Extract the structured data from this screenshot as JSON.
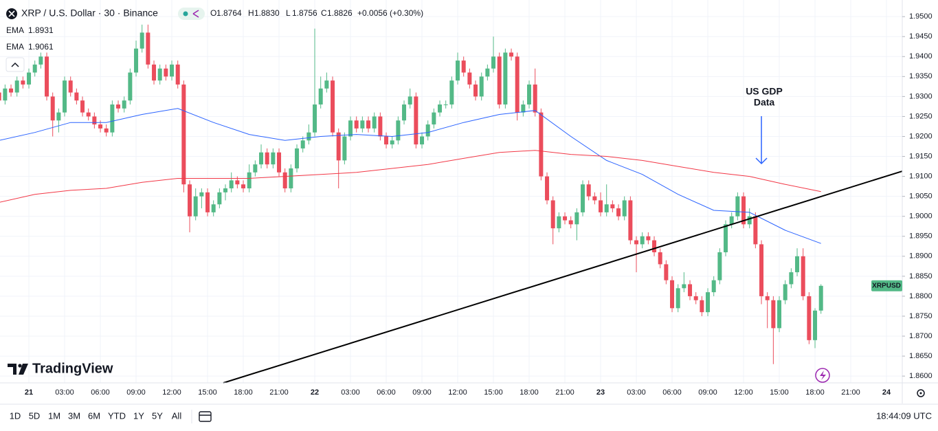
{
  "header": {
    "symbol": "XRP / U.S. Dollar · 30 · Binance",
    "ohlc": [
      {
        "label": "O",
        "value": "1.8764"
      },
      {
        "label": "H",
        "value": "1.8830"
      },
      {
        "label": "L",
        "value": "1.8756"
      },
      {
        "label": "C",
        "value": "1.8826"
      }
    ],
    "change": "+0.0056 (+0.30%)"
  },
  "logo": "TradingView",
  "toolbar": {
    "ranges": [
      "1D",
      "5D",
      "1M",
      "3M",
      "6M",
      "YTD",
      "1Y",
      "5Y",
      "All"
    ],
    "clock": "18:44:09 UTC"
  },
  "chart_data": {
    "type": "candlestick",
    "up_color": "#53b987",
    "down_color": "#eb4d5c",
    "grid": true,
    "xlim": [
      0.15,
      151.65
    ],
    "ylim": [
      1.8583,
      1.9533
    ],
    "yticks": [
      {
        "value": 1.86,
        "label": "1.8600"
      },
      {
        "value": 1.865,
        "label": "1.8650"
      },
      {
        "value": 1.87,
        "label": "1.8700"
      },
      {
        "value": 1.875,
        "label": "1.8750"
      },
      {
        "value": 1.88,
        "label": "1.8800"
      },
      {
        "value": 1.885,
        "label": "1.8850"
      },
      {
        "value": 1.89,
        "label": "1.8900"
      },
      {
        "value": 1.895,
        "label": "1.8950"
      },
      {
        "value": 1.9,
        "label": "1.9000"
      },
      {
        "value": 1.905,
        "label": "1.9050"
      },
      {
        "value": 1.91,
        "label": "1.9100"
      },
      {
        "value": 1.915,
        "label": "1.9150"
      },
      {
        "value": 1.92,
        "label": "1.9200"
      },
      {
        "value": 1.925,
        "label": "1.9250"
      },
      {
        "value": 1.93,
        "label": "1.9300"
      },
      {
        "value": 1.935,
        "label": "1.9350"
      },
      {
        "value": 1.94,
        "label": "1.9400"
      },
      {
        "value": 1.945,
        "label": "1.9450"
      },
      {
        "value": 1.95,
        "label": "1.9500"
      }
    ],
    "xticks": [
      {
        "value": 5,
        "label": "21"
      },
      {
        "value": 11,
        "label": "03:00"
      },
      {
        "value": 17,
        "label": "06:00"
      },
      {
        "value": 23,
        "label": "09:00"
      },
      {
        "value": 29,
        "label": "12:00"
      },
      {
        "value": 35,
        "label": "15:00"
      },
      {
        "value": 41,
        "label": "18:00"
      },
      {
        "value": 47,
        "label": "21:00"
      },
      {
        "value": 53,
        "label": "22"
      },
      {
        "value": 59,
        "label": "03:00"
      },
      {
        "value": 65,
        "label": "06:00"
      },
      {
        "value": 71,
        "label": "09:00"
      },
      {
        "value": 77,
        "label": "12:00"
      },
      {
        "value": 83,
        "label": "15:00"
      },
      {
        "value": 89,
        "label": "18:00"
      },
      {
        "value": 95,
        "label": "21:00"
      },
      {
        "value": 101,
        "label": "23"
      },
      {
        "value": 107,
        "label": "03:00"
      },
      {
        "value": 113,
        "label": "06:00"
      },
      {
        "value": 119,
        "label": "09:00"
      },
      {
        "value": 125,
        "label": "12:00"
      },
      {
        "value": 131,
        "label": "15:00"
      },
      {
        "value": 137,
        "label": "18:00"
      },
      {
        "value": 143,
        "label": "21:00"
      },
      {
        "value": 149,
        "label": "24"
      }
    ],
    "open": [
      1.931,
      1.929,
      1.932,
      1.931,
      1.934,
      1.933,
      1.936,
      1.938,
      1.94,
      1.93,
      1.924,
      1.926,
      1.934,
      1.931,
      1.929,
      1.926,
      1.925,
      1.923,
      1.922,
      1.921,
      1.928,
      1.927,
      1.929,
      1.936,
      1.942,
      1.946,
      1.938,
      1.934,
      1.937,
      1.935,
      1.938,
      1.933,
      1.908,
      1.9,
      1.905,
      1.906,
      1.901,
      1.903,
      1.906,
      1.907,
      1.909,
      1.908,
      1.907,
      1.911,
      1.913,
      1.916,
      1.913,
      1.916,
      1.911,
      1.907,
      1.912,
      1.917,
      1.919,
      1.921,
      1.928,
      1.932,
      1.934,
      1.921,
      1.914,
      1.92,
      1.924,
      1.922,
      1.924,
      1.922,
      1.925,
      1.92,
      1.918,
      1.919,
      1.924,
      1.928,
      1.93,
      1.918,
      1.92,
      1.923,
      1.926,
      1.928,
      1.928,
      1.934,
      1.939,
      1.936,
      1.933,
      1.93,
      1.935,
      1.937,
      1.94,
      1.928,
      1.941,
      1.94,
      1.926,
      1.928,
      1.933,
      1.926,
      1.91,
      1.904,
      1.897,
      1.9,
      1.899,
      1.898,
      1.901,
      1.908,
      1.905,
      1.904,
      1.901,
      1.903,
      1.902,
      1.9,
      1.904,
      1.894,
      1.893,
      1.895,
      1.894,
      1.891,
      1.888,
      1.884,
      1.877,
      1.882,
      1.883,
      1.88,
      1.879,
      1.876,
      1.881,
      1.884,
      1.891,
      1.898,
      1.9,
      1.905,
      1.898,
      1.9,
      1.893,
      1.88,
      1.879,
      1.872,
      1.879,
      1.883,
      1.886,
      1.89,
      1.88,
      1.869,
      1.8764
    ],
    "high": [
      1.932,
      1.933,
      1.933,
      1.935,
      1.935,
      1.937,
      1.939,
      1.941,
      1.941,
      1.931,
      1.927,
      1.935,
      1.935,
      1.932,
      1.93,
      1.927,
      1.926,
      1.924,
      1.923,
      1.929,
      1.929,
      1.93,
      1.937,
      1.944,
      1.948,
      1.948,
      1.939,
      1.938,
      1.938,
      1.939,
      1.939,
      1.934,
      1.909,
      1.907,
      1.907,
      1.907,
      1.904,
      1.907,
      1.908,
      1.911,
      1.91,
      1.909,
      1.913,
      1.914,
      1.918,
      1.917,
      1.917,
      1.917,
      1.912,
      1.913,
      1.918,
      1.92,
      1.923,
      1.947,
      1.935,
      1.936,
      1.935,
      1.922,
      1.921,
      1.925,
      1.925,
      1.925,
      1.925,
      1.926,
      1.926,
      1.921,
      1.92,
      1.925,
      1.929,
      1.932,
      1.931,
      1.921,
      1.924,
      1.927,
      1.929,
      1.929,
      1.935,
      1.941,
      1.94,
      1.937,
      1.934,
      1.936,
      1.938,
      1.945,
      1.941,
      1.942,
      1.942,
      1.941,
      1.929,
      1.934,
      1.937,
      1.927,
      1.911,
      1.905,
      1.901,
      1.901,
      1.9,
      1.902,
      1.909,
      1.909,
      1.906,
      1.906,
      1.908,
      1.904,
      1.903,
      1.905,
      1.905,
      1.895,
      1.896,
      1.896,
      1.895,
      1.892,
      1.889,
      1.885,
      1.883,
      1.886,
      1.884,
      1.881,
      1.88,
      1.882,
      1.885,
      1.892,
      1.899,
      1.901,
      1.906,
      1.906,
      1.902,
      1.901,
      1.894,
      1.881,
      1.88,
      1.88,
      1.884,
      1.887,
      1.892,
      1.892,
      1.881,
      1.877,
      1.883
    ],
    "low": [
      1.928,
      1.928,
      1.93,
      1.93,
      1.932,
      1.932,
      1.935,
      1.937,
      1.929,
      1.92,
      1.921,
      1.925,
      1.93,
      1.928,
      1.925,
      1.924,
      1.922,
      1.921,
      1.92,
      1.92,
      1.926,
      1.926,
      1.928,
      1.935,
      1.941,
      1.937,
      1.933,
      1.933,
      1.934,
      1.934,
      1.932,
      1.906,
      1.896,
      1.899,
      1.902,
      1.9,
      1.9,
      1.902,
      1.904,
      1.906,
      1.907,
      1.906,
      1.906,
      1.91,
      1.912,
      1.912,
      1.912,
      1.91,
      1.906,
      1.906,
      1.911,
      1.916,
      1.918,
      1.92,
      1.927,
      1.931,
      1.92,
      1.907,
      1.913,
      1.919,
      1.921,
      1.921,
      1.921,
      1.921,
      1.919,
      1.917,
      1.917,
      1.918,
      1.923,
      1.927,
      1.917,
      1.917,
      1.919,
      1.922,
      1.925,
      1.927,
      1.927,
      1.933,
      1.935,
      1.932,
      1.929,
      1.929,
      1.934,
      1.936,
      1.927,
      1.927,
      1.939,
      1.924,
      1.925,
      1.927,
      1.925,
      1.909,
      1.903,
      1.893,
      1.896,
      1.898,
      1.897,
      1.894,
      1.9,
      1.904,
      1.903,
      1.9,
      1.9,
      1.901,
      1.899,
      1.899,
      1.893,
      1.886,
      1.892,
      1.893,
      1.89,
      1.887,
      1.883,
      1.876,
      1.876,
      1.881,
      1.879,
      1.878,
      1.875,
      1.875,
      1.88,
      1.883,
      1.89,
      1.897,
      1.899,
      1.897,
      1.897,
      1.892,
      1.878,
      1.872,
      1.863,
      1.871,
      1.878,
      1.882,
      1.885,
      1.879,
      1.868,
      1.867,
      1.8756
    ],
    "close": [
      1.929,
      1.932,
      1.931,
      1.934,
      1.933,
      1.936,
      1.938,
      1.94,
      1.93,
      1.924,
      1.926,
      1.934,
      1.931,
      1.929,
      1.926,
      1.925,
      1.923,
      1.922,
      1.921,
      1.928,
      1.927,
      1.929,
      1.936,
      1.942,
      1.946,
      1.938,
      1.934,
      1.937,
      1.935,
      1.938,
      1.933,
      1.908,
      1.9,
      1.905,
      1.906,
      1.901,
      1.903,
      1.906,
      1.907,
      1.909,
      1.908,
      1.907,
      1.911,
      1.913,
      1.916,
      1.913,
      1.916,
      1.911,
      1.907,
      1.912,
      1.917,
      1.919,
      1.921,
      1.928,
      1.932,
      1.934,
      1.921,
      1.914,
      1.92,
      1.924,
      1.922,
      1.924,
      1.922,
      1.925,
      1.92,
      1.918,
      1.919,
      1.924,
      1.928,
      1.93,
      1.918,
      1.92,
      1.923,
      1.926,
      1.928,
      1.928,
      1.934,
      1.939,
      1.936,
      1.933,
      1.93,
      1.935,
      1.937,
      1.94,
      1.928,
      1.941,
      1.94,
      1.926,
      1.928,
      1.933,
      1.926,
      1.91,
      1.904,
      1.897,
      1.9,
      1.899,
      1.898,
      1.901,
      1.908,
      1.905,
      1.904,
      1.901,
      1.903,
      1.902,
      1.9,
      1.904,
      1.894,
      1.893,
      1.895,
      1.894,
      1.891,
      1.888,
      1.884,
      1.877,
      1.882,
      1.883,
      1.88,
      1.879,
      1.876,
      1.881,
      1.884,
      1.891,
      1.898,
      1.9,
      1.905,
      1.898,
      1.9,
      1.893,
      1.88,
      1.879,
      1.872,
      1.879,
      1.883,
      1.886,
      1.89,
      1.88,
      1.869,
      1.8764,
      1.8826
    ],
    "series": [
      {
        "name": "EMA",
        "color": "#2962ff",
        "legend_value": "1.8931",
        "x": [
          0,
          6,
          12,
          18,
          24,
          30,
          36,
          42,
          48,
          54,
          60,
          66,
          72,
          78,
          84,
          90,
          96,
          102,
          108,
          114,
          120,
          126,
          132,
          138
        ],
        "values": [
          1.919,
          1.921,
          1.9235,
          1.9235,
          1.9255,
          1.927,
          1.9235,
          1.9205,
          1.919,
          1.92,
          1.9205,
          1.92,
          1.921,
          1.9235,
          1.9255,
          1.9265,
          1.92,
          1.914,
          1.9105,
          1.9055,
          1.9015,
          1.901,
          1.8965,
          1.8932
        ]
      },
      {
        "name": "EMA",
        "color": "#f23645",
        "legend_value": "1.9061",
        "x": [
          0,
          6,
          12,
          18,
          24,
          30,
          36,
          42,
          48,
          54,
          60,
          66,
          72,
          78,
          84,
          90,
          96,
          102,
          108,
          114,
          120,
          126,
          132,
          138
        ],
        "values": [
          1.9035,
          1.9055,
          1.9065,
          1.907,
          1.9085,
          1.9095,
          1.9095,
          1.9095,
          1.91,
          1.9105,
          1.911,
          1.912,
          1.913,
          1.9145,
          1.916,
          1.9165,
          1.9155,
          1.915,
          1.914,
          1.9125,
          1.911,
          1.91,
          1.908,
          1.9062
        ]
      }
    ],
    "trendline": {
      "x": [
        37.65,
        151.65
      ],
      "values": [
        1.8583,
        1.9113
      ],
      "color": "#000000"
    },
    "annotation": {
      "text": [
        "US GDP",
        "Data"
      ],
      "x": 128,
      "color": "#2962ff"
    },
    "last_label": "XRPUSD"
  }
}
